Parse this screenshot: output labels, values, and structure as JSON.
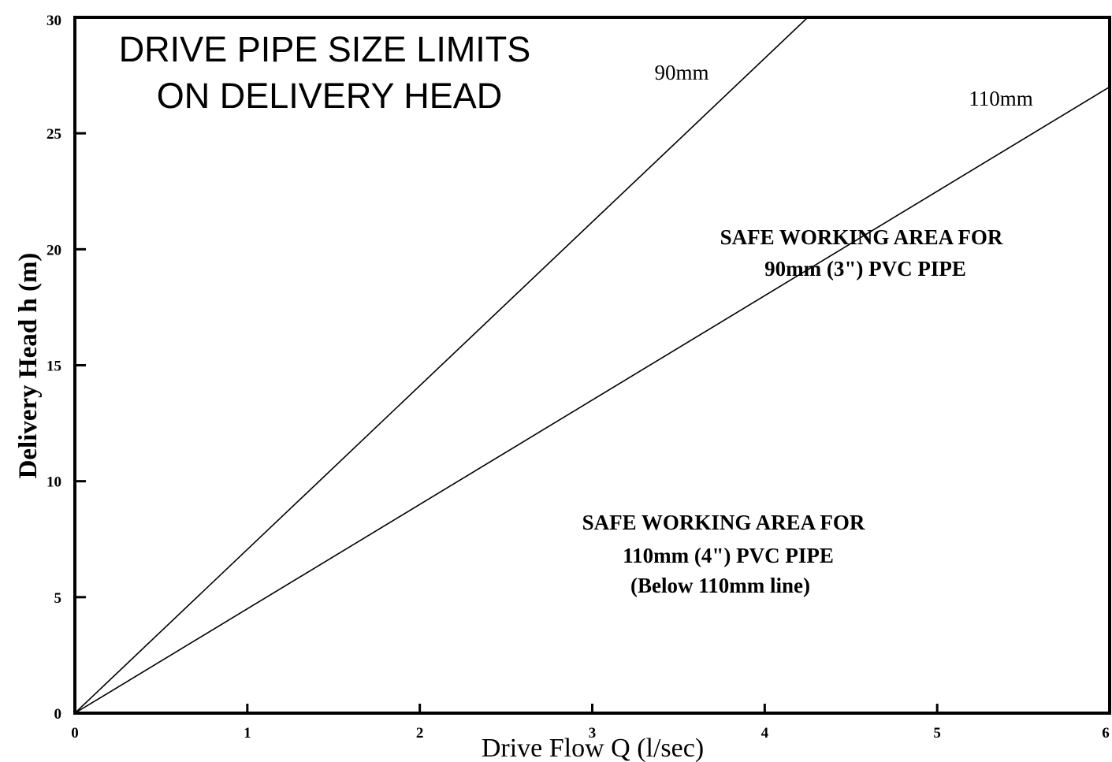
{
  "chart_data": {
    "type": "line",
    "title": [
      "DRIVE PIPE SIZE LIMITS",
      "ON DELIVERY HEAD"
    ],
    "xlabel": "Drive Flow Q (l/sec)",
    "ylabel": "Delivery Head h (m)",
    "xlim": [
      0,
      6
    ],
    "ylim": [
      0,
      30
    ],
    "x_ticks": [
      0,
      1,
      2,
      3,
      4,
      5,
      6
    ],
    "y_ticks": [
      0,
      5,
      10,
      15,
      20,
      25,
      30
    ],
    "grid": false,
    "series": [
      {
        "name": "90mm",
        "x": [
          0,
          4.25
        ],
        "y": [
          0,
          30
        ]
      },
      {
        "name": "110mm",
        "x": [
          0,
          6
        ],
        "y": [
          0,
          27
        ]
      }
    ],
    "annotations": [
      {
        "lines": [
          "SAFE WORKING AREA FOR",
          "90mm (3\") PVC PIPE"
        ]
      },
      {
        "lines": [
          "SAFE WORKING AREA FOR",
          "110mm (4\") PVC PIPE",
          "(Below 110mm line)"
        ]
      }
    ]
  }
}
